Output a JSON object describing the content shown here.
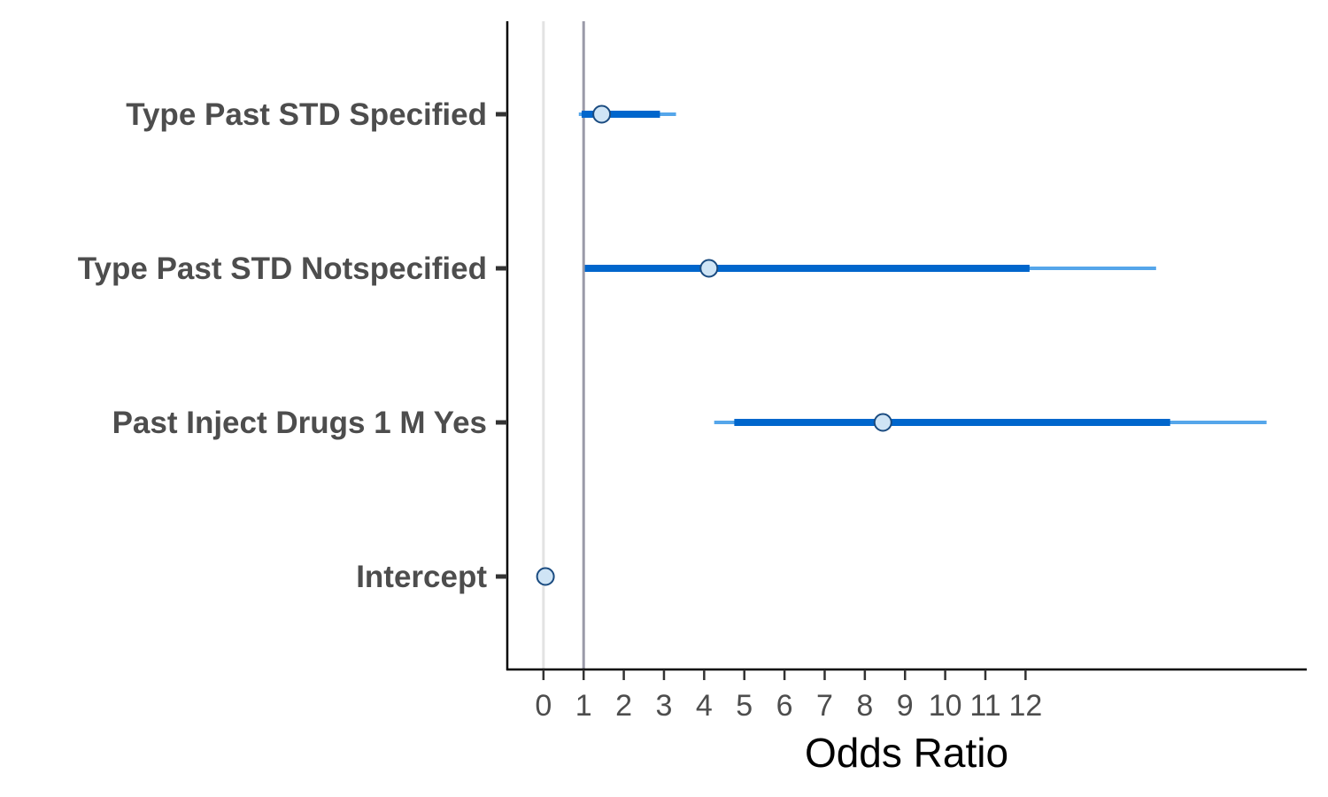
{
  "chart_data": {
    "type": "forest",
    "xlabel": "Odds Ratio",
    "ylabel": "",
    "xlim": [
      -0.9,
      19.0
    ],
    "x_ticks": [
      0,
      1,
      2,
      3,
      4,
      5,
      6,
      7,
      8,
      9,
      10,
      11,
      12
    ],
    "x_tick_labels": [
      "0",
      "1",
      "2",
      "3",
      "4",
      "5",
      "6",
      "7",
      "8",
      "9",
      "10",
      "11",
      "12"
    ],
    "reference_line": 1,
    "zero_line": 0,
    "grid": false,
    "categories": [
      "Type Past STD Specified",
      "Type Past STD Notspecified",
      "Past Inject Drugs 1 M Yes",
      "Intercept"
    ],
    "estimates": [
      {
        "label": "Type Past STD Specified",
        "or": 1.45,
        "inner_low": 0.95,
        "inner_high": 2.9,
        "outer_low": 0.88,
        "outer_high": 3.3
      },
      {
        "label": "Type Past STD Notspecified",
        "or": 4.12,
        "inner_low": 1.03,
        "inner_high": 12.1,
        "outer_low": 1.03,
        "outer_high": 15.25
      },
      {
        "label": "Past Inject Drugs 1 M Yes",
        "or": 8.45,
        "inner_low": 4.75,
        "inner_high": 15.6,
        "outer_low": 4.25,
        "outer_high": 18.0
      },
      {
        "label": "Intercept",
        "or": 0.05,
        "inner_low": 0.05,
        "inner_high": 0.05,
        "outer_low": 0.05,
        "outer_high": 0.05
      }
    ],
    "colors": {
      "inner_interval": "#0066cc",
      "outer_interval": "#55a6ea",
      "point_fill": "#cfe4f5",
      "point_stroke": "#1a4b80",
      "reference_line": "#9a9aa8",
      "zero_line": "#e3e3e3",
      "axis": "#000000",
      "tick": "#333333"
    }
  }
}
